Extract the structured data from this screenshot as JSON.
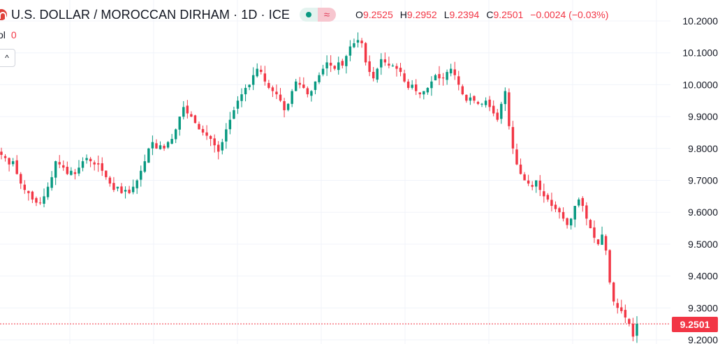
{
  "header": {
    "symbol_title": "U.S. DOLLAR / MOROCCAN DIRHAM · 1D · ICE",
    "logo_icon": "currency-flag-icon",
    "status_dot_icon": "market-open-dot-icon",
    "wave_icon_glyph": "≈",
    "ohlc": {
      "open_label": "O",
      "open": "9.2525",
      "high_label": "H",
      "high": "9.2952",
      "low_label": "L",
      "low": "9.2394",
      "close_label": "C",
      "close": "9.2501",
      "change": "−0.0024 (−0.03%)"
    },
    "volume_label": "ol",
    "volume_value": "0",
    "collapse_icon": "chevron-up-icon",
    "collapse_glyph": "^"
  },
  "colors": {
    "up": "#089981",
    "down": "#f23645",
    "grid": "#f0f3fa",
    "text": "#131722"
  },
  "price_tag": "9.2501",
  "chart_data": {
    "type": "candlestick",
    "title": "U.S. DOLLAR / MOROCCAN DIRHAM · 1D · ICE",
    "ylim": [
      9.17,
      10.24
    ],
    "y_ticks": [
      "10.2000",
      "10.1000",
      "10.0000",
      "9.9000",
      "9.8000",
      "9.7000",
      "9.6000",
      "9.5000",
      "9.4000",
      "9.3000",
      "9.2000"
    ],
    "last_price": 9.2501,
    "grid": true,
    "close_series": [
      9.78,
      9.77,
      9.75,
      9.76,
      9.72,
      9.69,
      9.67,
      9.66,
      9.64,
      9.63,
      9.63,
      9.65,
      9.68,
      9.71,
      9.76,
      9.75,
      9.74,
      9.72,
      9.73,
      9.72,
      9.74,
      9.76,
      9.77,
      9.76,
      9.75,
      9.75,
      9.73,
      9.71,
      9.69,
      9.67,
      9.68,
      9.66,
      9.67,
      9.66,
      9.68,
      9.7,
      9.73,
      9.76,
      9.8,
      9.82,
      9.8,
      9.81,
      9.8,
      9.82,
      9.83,
      9.86,
      9.9,
      9.93,
      9.91,
      9.9,
      9.88,
      9.86,
      9.85,
      9.84,
      9.83,
      9.81,
      9.79,
      9.82,
      9.86,
      9.89,
      9.92,
      9.95,
      9.97,
      9.99,
      10.0,
      10.03,
      10.05,
      10.04,
      10.01,
      9.99,
      9.98,
      9.97,
      9.95,
      9.92,
      9.94,
      9.98,
      10.01,
      10.0,
      9.99,
      9.97,
      9.98,
      10.01,
      10.03,
      10.05,
      10.07,
      10.06,
      10.05,
      10.07,
      10.06,
      10.09,
      10.12,
      10.13,
      10.14,
      10.13,
      10.07,
      10.04,
      10.02,
      10.05,
      10.08,
      10.07,
      10.06,
      10.06,
      10.05,
      10.04,
      10.01,
      9.99,
      10.0,
      9.98,
      9.97,
      9.98,
      9.99,
      10.01,
      10.03,
      10.02,
      10.02,
      10.04,
      10.05,
      10.03,
      10.0,
      9.97,
      9.95,
      9.96,
      9.95,
      9.94,
      9.94,
      9.95,
      9.93,
      9.91,
      9.89,
      9.94,
      9.98,
      9.87,
      9.8,
      9.75,
      9.72,
      9.7,
      9.69,
      9.68,
      9.7,
      9.67,
      9.65,
      9.64,
      9.62,
      9.61,
      9.6,
      9.58,
      9.56,
      9.58,
      9.62,
      9.64,
      9.62,
      9.58,
      9.55,
      9.52,
      9.5,
      9.53,
      9.48,
      9.38,
      9.32,
      9.3,
      9.29,
      9.27,
      9.25,
      9.21,
      9.25
    ]
  }
}
